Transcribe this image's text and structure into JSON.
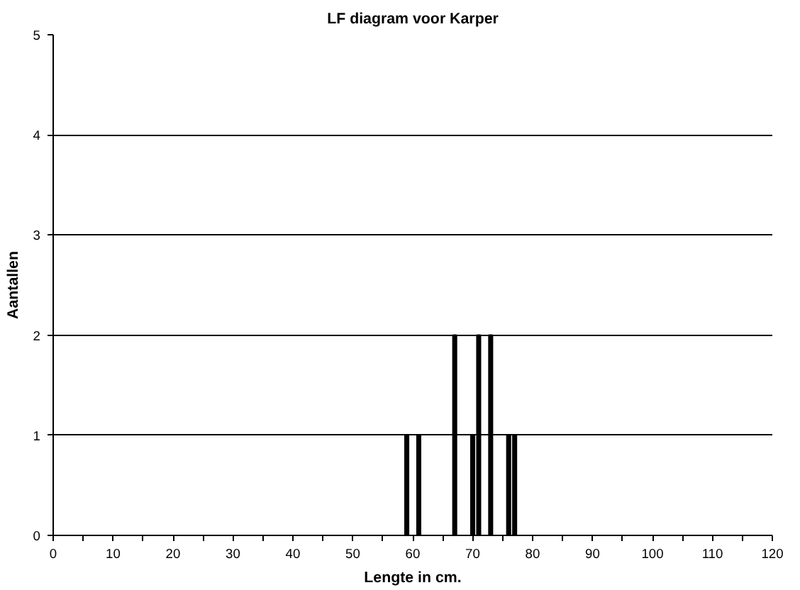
{
  "chart_data": {
    "type": "bar",
    "title": "LF diagram voor Karper",
    "xlabel": "Lengte in cm.",
    "ylabel": "Aantallen",
    "x": [
      59,
      61,
      67,
      70,
      71,
      73,
      76,
      77
    ],
    "values": [
      1,
      1,
      2,
      1,
      2,
      2,
      1,
      1
    ],
    "color": "#000000",
    "xlim": [
      0,
      120
    ],
    "xticks": [
      0,
      {
        "value": 5,
        "label": null
      },
      10,
      {
        "value": 15,
        "label": null
      },
      20,
      {
        "value": 25,
        "label": null
      },
      30,
      {
        "value": 35,
        "label": null
      },
      40,
      {
        "value": 45,
        "label": null
      },
      50,
      {
        "value": 55,
        "label": null
      },
      60,
      {
        "value": 65,
        "label": null
      },
      70,
      {
        "value": 75,
        "label": null
      },
      80,
      {
        "value": 85,
        "label": null
      },
      90,
      {
        "value": 95,
        "label": null
      },
      100,
      {
        "value": 105,
        "label": null
      },
      110,
      {
        "value": 115,
        "label": null
      },
      120
    ],
    "ylim": [
      0,
      5
    ],
    "yticks": [
      0,
      1,
      2,
      3,
      4,
      5
    ],
    "grid": "y"
  }
}
